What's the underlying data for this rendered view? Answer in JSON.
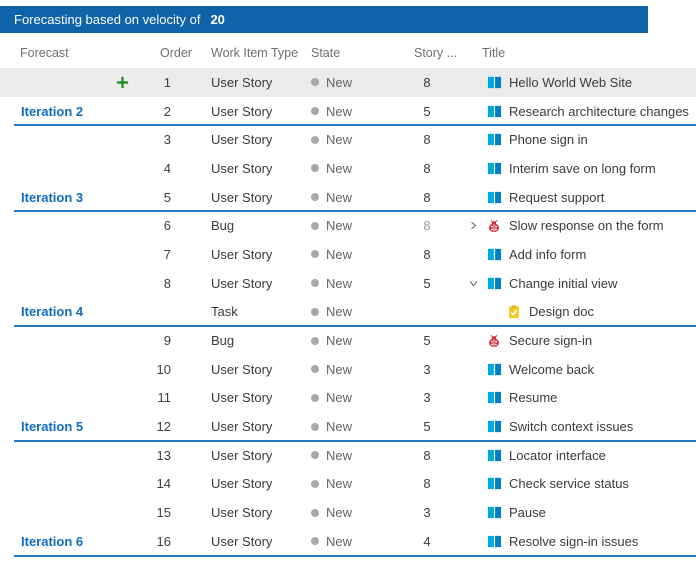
{
  "topbar": {
    "label": "Forecasting based on velocity of",
    "velocity": "20"
  },
  "columns": [
    {
      "label": "Forecast"
    },
    {
      "label": "Order"
    },
    {
      "label": "Work Item Type"
    },
    {
      "label": "State"
    },
    {
      "label": "Story ..."
    },
    {
      "label": "Title"
    }
  ],
  "colors": {
    "topbar_blue": "#0f63a8",
    "forecast_line_blue": "#2478c4",
    "iteration_label_blue": "#0f6cbf",
    "highlight_gray": "#ebebeb",
    "plus_green": "#218721",
    "user_story_cyan": "#00a9dc",
    "bug_red": "#cc293d",
    "task_yellow": "#f2ca1d",
    "state_dot_gray": "#a8a8a8"
  },
  "icon_names": [
    "add-icon",
    "user-story-icon",
    "bug-icon",
    "task-icon",
    "chevron-right-icon",
    "chevron-down-icon",
    "state-dot-icon"
  ],
  "rows": [
    {
      "forecast": "",
      "order": "1",
      "type": "User Story",
      "state": "New",
      "points": "8",
      "title": "Hello World Web Site",
      "icon": "user-story",
      "highlighted": true,
      "add": true
    },
    {
      "forecast": "Iteration 2",
      "order": "2",
      "type": "User Story",
      "state": "New",
      "points": "5",
      "title": "Research architecture changes",
      "icon": "user-story",
      "line": true
    },
    {
      "forecast": "",
      "order": "3",
      "type": "User Story",
      "state": "New",
      "points": "8",
      "title": "Phone sign in",
      "icon": "user-story"
    },
    {
      "forecast": "",
      "order": "4",
      "type": "User Story",
      "state": "New",
      "points": "8",
      "title": "Interim save on long form",
      "icon": "user-story"
    },
    {
      "forecast": "Iteration 3",
      "order": "5",
      "type": "User Story",
      "state": "New",
      "points": "8",
      "title": "Request support",
      "icon": "user-story",
      "line": true
    },
    {
      "forecast": "",
      "order": "6",
      "type": "Bug",
      "state": "New",
      "points": "8",
      "points_muted": true,
      "title": "Slow response on the form",
      "icon": "bug",
      "chevron": "collapsed"
    },
    {
      "forecast": "",
      "order": "7",
      "type": "User Story",
      "state": "New",
      "points": "8",
      "title": "Add info form",
      "icon": "user-story"
    },
    {
      "forecast": "",
      "order": "8",
      "type": "User Story",
      "state": "New",
      "points": "5",
      "title": "Change initial view",
      "icon": "user-story",
      "chevron": "expanded"
    },
    {
      "forecast": "Iteration 4",
      "order": "",
      "type": "Task",
      "state": "New",
      "points": "",
      "title": "Design doc",
      "icon": "task",
      "child": true,
      "line": true
    },
    {
      "forecast": "",
      "order": "9",
      "type": "Bug",
      "state": "New",
      "points": "5",
      "title": "Secure sign-in",
      "icon": "bug"
    },
    {
      "forecast": "",
      "order": "10",
      "type": "User Story",
      "state": "New",
      "points": "3",
      "title": "Welcome back",
      "icon": "user-story"
    },
    {
      "forecast": "",
      "order": "11",
      "type": "User Story",
      "state": "New",
      "points": "3",
      "title": "Resume",
      "icon": "user-story"
    },
    {
      "forecast": "Iteration 5",
      "order": "12",
      "type": "User Story",
      "state": "New",
      "points": "5",
      "title": "Switch context issues",
      "icon": "user-story",
      "line": true
    },
    {
      "forecast": "",
      "order": "13",
      "type": "User Story",
      "state": "New",
      "points": "8",
      "title": "Locator interface",
      "icon": "user-story"
    },
    {
      "forecast": "",
      "order": "14",
      "type": "User Story",
      "state": "New",
      "points": "8",
      "title": "Check service status",
      "icon": "user-story"
    },
    {
      "forecast": "",
      "order": "15",
      "type": "User Story",
      "state": "New",
      "points": "3",
      "title": "Pause",
      "icon": "user-story"
    },
    {
      "forecast": "Iteration 6",
      "order": "16",
      "type": "User Story",
      "state": "New",
      "points": "4",
      "title": "Resolve sign-in issues",
      "icon": "user-story",
      "line": true
    }
  ]
}
